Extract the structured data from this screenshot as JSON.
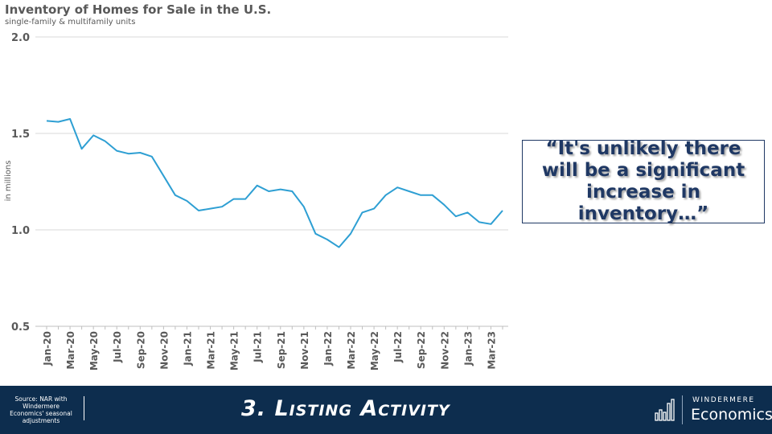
{
  "chart_data": {
    "type": "line",
    "title": "Inventory of Homes for Sale in the U.S.",
    "subtitle": "single-family & multifamily units",
    "ylabel": "in millions",
    "ylim": [
      0.5,
      2.0
    ],
    "yticks": [
      "0.5",
      "1.0",
      "1.5",
      "2.0"
    ],
    "grid": true,
    "line_color": "#2e9fd3",
    "x": [
      "Jan-20",
      "Feb-20",
      "Mar-20",
      "Apr-20",
      "May-20",
      "Jun-20",
      "Jul-20",
      "Aug-20",
      "Sep-20",
      "Oct-20",
      "Nov-20",
      "Dec-20",
      "Jan-21",
      "Feb-21",
      "Mar-21",
      "Apr-21",
      "May-21",
      "Jun-21",
      "Jul-21",
      "Aug-21",
      "Sep-21",
      "Oct-21",
      "Nov-21",
      "Dec-21",
      "Jan-22",
      "Feb-22",
      "Mar-22",
      "Apr-22",
      "May-22",
      "Jun-22",
      "Jul-22",
      "Aug-22",
      "Sep-22",
      "Oct-22",
      "Nov-22",
      "Dec-22",
      "Jan-23",
      "Feb-23",
      "Mar-23",
      "Apr-23"
    ],
    "xtick_labels": [
      "Jan-20",
      "Mar-20",
      "May-20",
      "Jul-20",
      "Sep-20",
      "Nov-20",
      "Jan-21",
      "Mar-21",
      "May-21",
      "Jul-21",
      "Sep-21",
      "Nov-21",
      "Jan-22",
      "Mar-22",
      "May-22",
      "Jul-22",
      "Sep-22",
      "Nov-22",
      "Jan-23",
      "Mar-23"
    ],
    "series": [
      {
        "values": [
          1.565,
          1.56,
          1.575,
          1.42,
          1.49,
          1.46,
          1.41,
          1.395,
          1.4,
          1.38,
          1.28,
          1.18,
          1.15,
          1.1,
          1.11,
          1.12,
          1.16,
          1.16,
          1.23,
          1.2,
          1.21,
          1.2,
          1.12,
          0.98,
          0.95,
          0.91,
          0.98,
          1.09,
          1.11,
          1.18,
          1.22,
          1.2,
          1.18,
          1.18,
          1.13,
          1.07,
          1.09,
          1.04,
          1.03,
          1.1
        ]
      }
    ]
  },
  "quote": "“It's unlikely there will be a significant increase in inventory…”",
  "footer": {
    "source": "Source: NAR with Windermere Economics' seasonal adjustments",
    "title": "3. Listing Activity",
    "brand": "WINDERMERE",
    "brand_name": "Economics",
    "bg_color": "#0d2d4e"
  }
}
